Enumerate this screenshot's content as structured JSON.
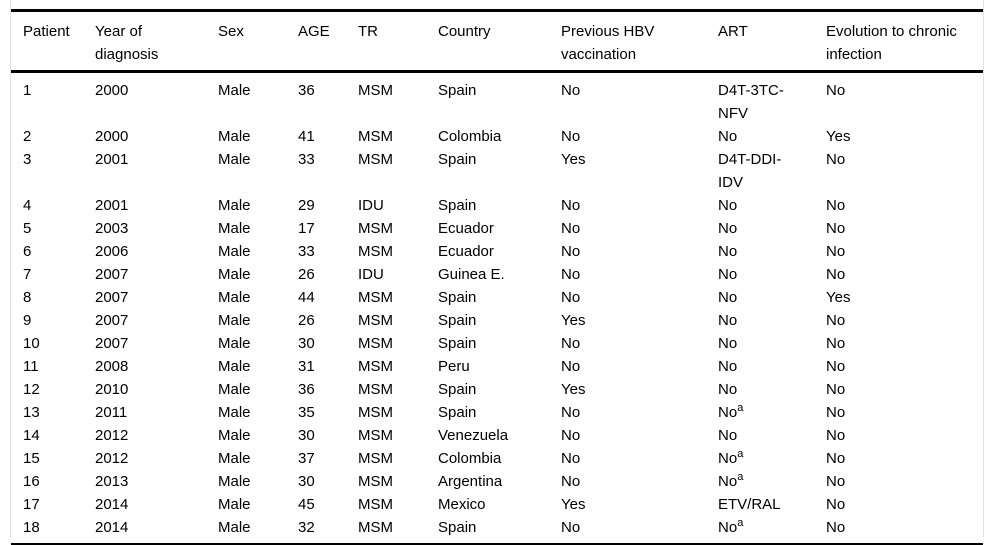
{
  "colors": {
    "text": "#000000",
    "heavy_rule": "#000000",
    "light_rule": "#e2e2e2",
    "background": "#ffffff"
  },
  "table": {
    "headers": [
      "Patient",
      "Year of diagnosis",
      "Sex",
      "AGE",
      "TR",
      "Country",
      "Previous HBV vaccination",
      "ART",
      "Evolution to chronic infection"
    ],
    "footnote_marker": "a",
    "rows": [
      [
        "1",
        "2000",
        "Male",
        "36",
        "MSM",
        "Spain",
        "No",
        "D4T-3TC-NFV",
        "No"
      ],
      [
        "2",
        "2000",
        "Male",
        "41",
        "MSM",
        "Colombia",
        "No",
        "No",
        "Yes"
      ],
      [
        "3",
        "2001",
        "Male",
        "33",
        "MSM",
        "Spain",
        "Yes",
        "D4T-DDI-IDV",
        "No"
      ],
      [
        "4",
        "2001",
        "Male",
        "29",
        "IDU",
        "Spain",
        "No",
        "No",
        "No"
      ],
      [
        "5",
        "2003",
        "Male",
        "17",
        "MSM",
        "Ecuador",
        "No",
        "No",
        "No"
      ],
      [
        "6",
        "2006",
        "Male",
        "33",
        "MSM",
        "Ecuador",
        "No",
        "No",
        "No"
      ],
      [
        "7",
        "2007",
        "Male",
        "26",
        "IDU",
        "Guinea E.",
        "No",
        "No",
        "No"
      ],
      [
        "8",
        "2007",
        "Male",
        "44",
        "MSM",
        "Spain",
        "No",
        "No",
        "Yes"
      ],
      [
        "9",
        "2007",
        "Male",
        "26",
        "MSM",
        "Spain",
        "Yes",
        "No",
        "No"
      ],
      [
        "10",
        "2007",
        "Male",
        "30",
        "MSM",
        "Spain",
        "No",
        "No",
        "No"
      ],
      [
        "11",
        "2008",
        "Male",
        "31",
        "MSM",
        "Peru",
        "No",
        "No",
        "No"
      ],
      [
        "12",
        "2010",
        "Male",
        "36",
        "MSM",
        "Spain",
        "Yes",
        "No",
        "No"
      ],
      [
        "13",
        "2011",
        "Male",
        "35",
        "MSM",
        "Spain",
        "No",
        "No^a",
        "No"
      ],
      [
        "14",
        "2012",
        "Male",
        "30",
        "MSM",
        "Venezuela",
        "No",
        "No",
        "No"
      ],
      [
        "15",
        "2012",
        "Male",
        "37",
        "MSM",
        "Colombia",
        "No",
        "No^a",
        "No"
      ],
      [
        "16",
        "2013",
        "Male",
        "30",
        "MSM",
        "Argentina",
        "No",
        "No^a",
        "No"
      ],
      [
        "17",
        "2014",
        "Male",
        "45",
        "MSM",
        "Mexico",
        "Yes",
        "ETV/RAL",
        "No"
      ],
      [
        "18",
        "2014",
        "Male",
        "32",
        "MSM",
        "Spain",
        "No",
        "No^a",
        "No"
      ]
    ]
  },
  "chart_data": {
    "type": "table",
    "title": "",
    "columns": [
      "Patient",
      "Year of diagnosis",
      "Sex",
      "AGE",
      "TR",
      "Country",
      "Previous HBV vaccination",
      "ART",
      "Evolution to chronic infection"
    ],
    "n_rows": 18
  }
}
